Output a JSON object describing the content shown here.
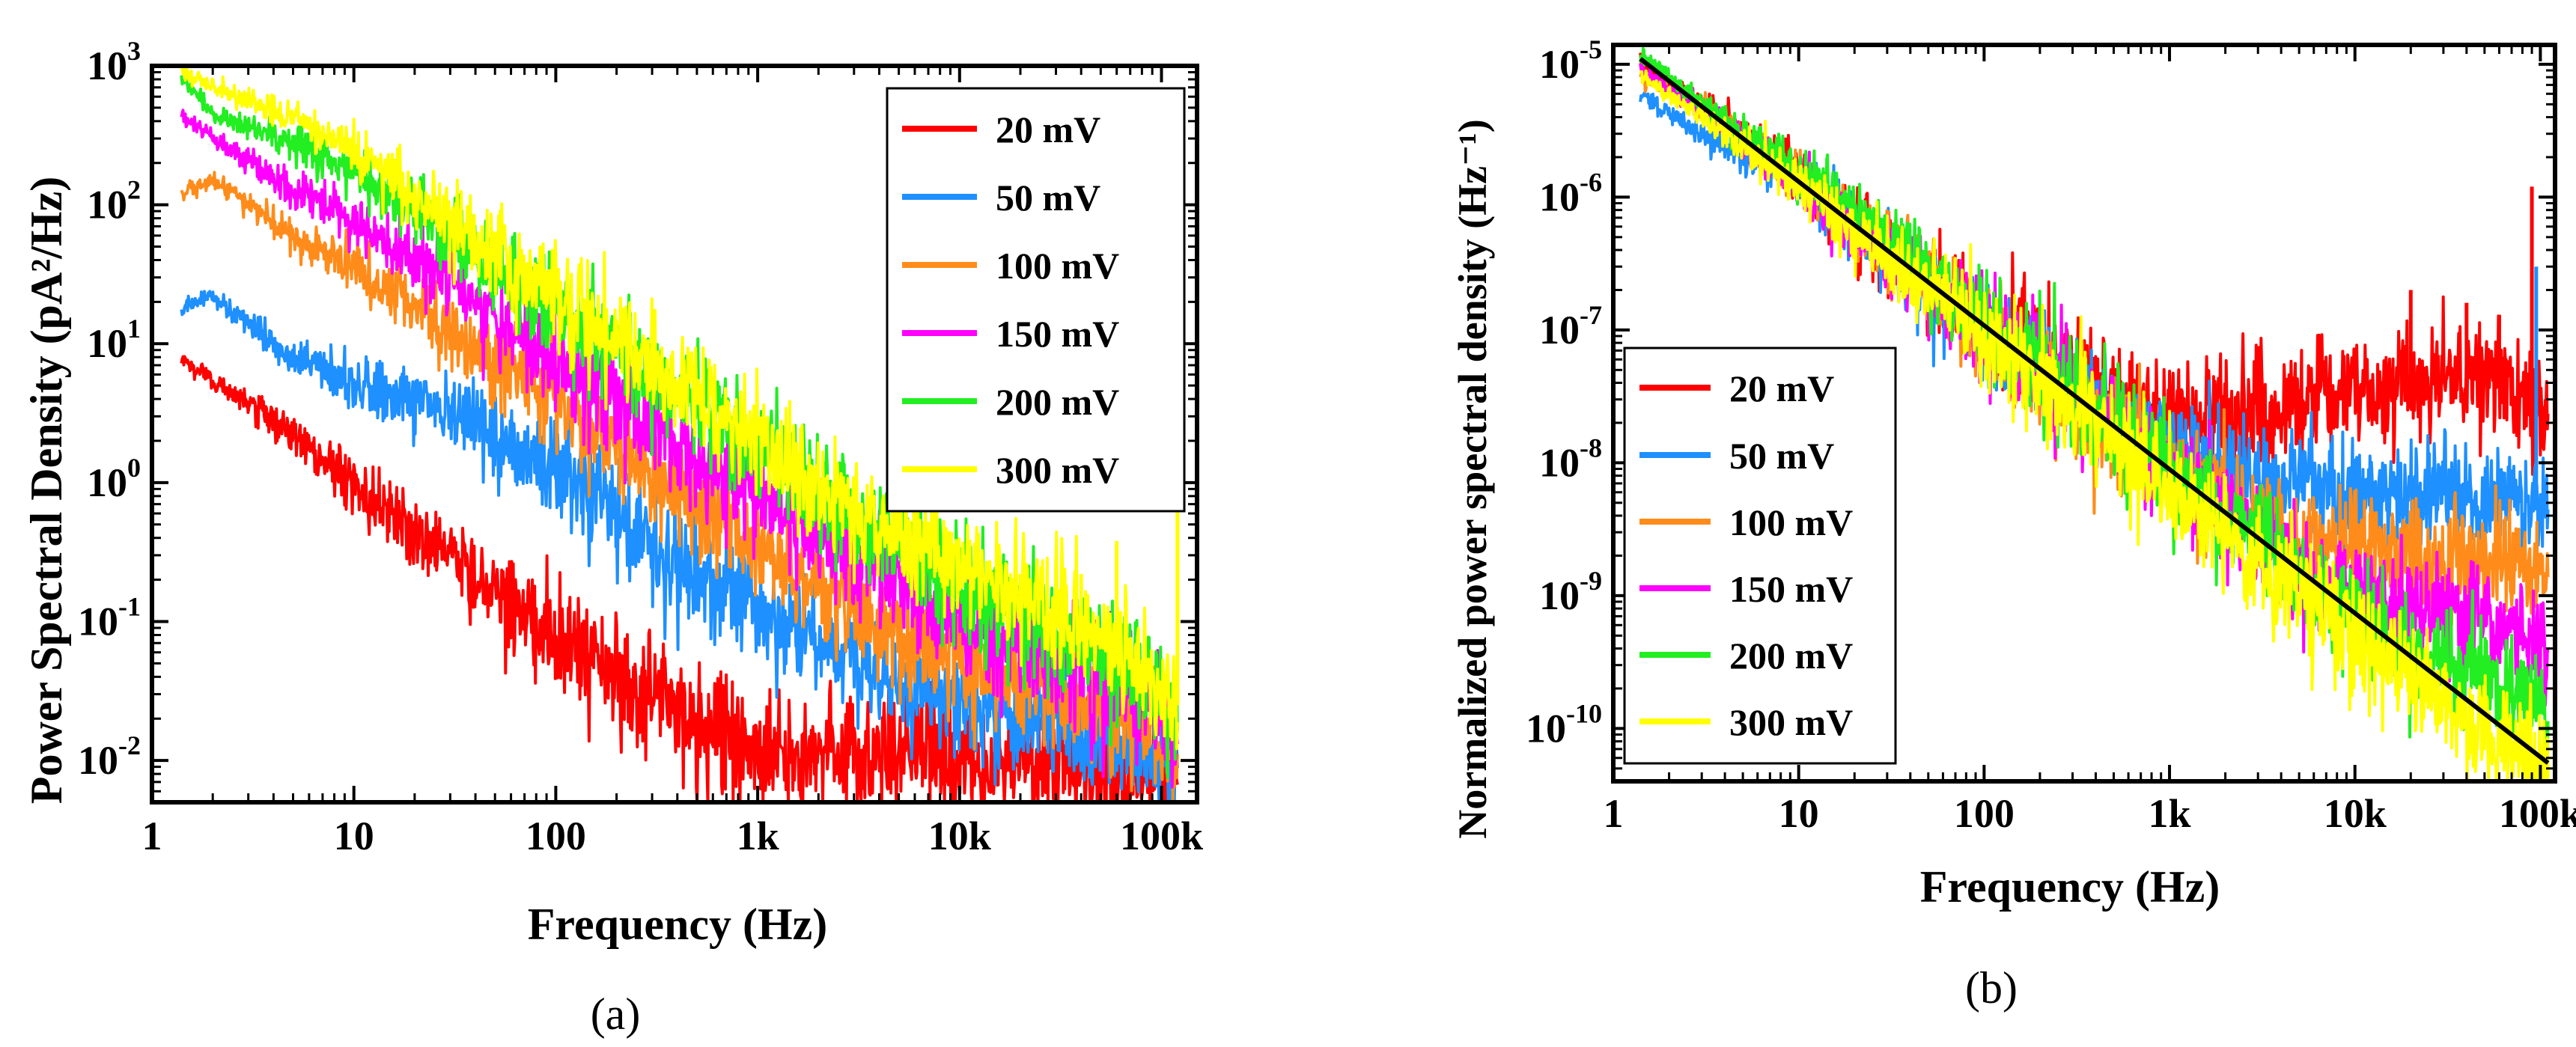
{
  "chart_data": [
    {
      "panel": "a",
      "type": "line",
      "panel_label": "(a)",
      "xlabel": "Frequency (Hz)",
      "ylabel": "Power Spectral Density (pA²/Hz)",
      "xscale": "log",
      "yscale": "log",
      "xlim": [
        1,
        150000
      ],
      "ylim": [
        0.005,
        1000
      ],
      "x_ticks": [
        {
          "value": 1,
          "label": "1"
        },
        {
          "value": 10,
          "label": "10"
        },
        {
          "value": 100,
          "label": "100"
        },
        {
          "value": 1000,
          "label": "1k"
        },
        {
          "value": 10000,
          "label": "10k"
        },
        {
          "value": 100000,
          "label": "100k"
        }
      ],
      "y_ticks": [
        {
          "value": 0.01,
          "base": "10",
          "exp": "-2"
        },
        {
          "value": 0.1,
          "base": "10",
          "exp": "-1"
        },
        {
          "value": 1,
          "base": "10",
          "exp": "0"
        },
        {
          "value": 10,
          "base": "10",
          "exp": "1"
        },
        {
          "value": 100,
          "base": "10",
          "exp": "2"
        },
        {
          "value": 1000,
          "base": "10",
          "exp": "3"
        }
      ],
      "legend_position": "top-right",
      "series": [
        {
          "name": "20 mV",
          "color": "#ff0000",
          "noise": 0.22,
          "points": [
            [
              1.4,
              7.5
            ],
            [
              2,
              5.5
            ],
            [
              5,
              2.2
            ],
            [
              10,
              1.0
            ],
            [
              20,
              0.45
            ],
            [
              40,
              0.22
            ],
            [
              80,
              0.1
            ],
            [
              150,
              0.05
            ],
            [
              300,
              0.028
            ],
            [
              600,
              0.016
            ],
            [
              1000,
              0.012
            ],
            [
              2000,
              0.011
            ],
            [
              5000,
              0.0105
            ],
            [
              10000,
              0.01
            ],
            [
              30000,
              0.0095
            ],
            [
              70000,
              0.008
            ],
            [
              100000,
              0.007
            ],
            [
              120000,
              0.0065
            ]
          ]
        },
        {
          "name": "50 mV",
          "color": "#1e90ff",
          "noise": 0.2,
          "points": [
            [
              1.4,
              18
            ],
            [
              2,
              22
            ],
            [
              5,
              8
            ],
            [
              10,
              5
            ],
            [
              20,
              3.8
            ],
            [
              40,
              2.5
            ],
            [
              80,
              1.5
            ],
            [
              150,
              0.8
            ],
            [
              300,
              0.35
            ],
            [
              600,
              0.18
            ],
            [
              1000,
              0.12
            ],
            [
              2000,
              0.07
            ],
            [
              5000,
              0.035
            ],
            [
              10000,
              0.025
            ],
            [
              30000,
              0.018
            ],
            [
              70000,
              0.013
            ],
            [
              100000,
              0.01
            ],
            [
              120000,
              0.009
            ]
          ]
        },
        {
          "name": "100 mV",
          "color": "#ff8c1a",
          "noise": 0.2,
          "points": [
            [
              1.4,
              120
            ],
            [
              2,
              150
            ],
            [
              5,
              60
            ],
            [
              10,
              35
            ],
            [
              20,
              20
            ],
            [
              40,
              10
            ],
            [
              80,
              5
            ],
            [
              150,
              2.5
            ],
            [
              300,
              1.2
            ],
            [
              600,
              0.6
            ],
            [
              1000,
              0.35
            ],
            [
              2000,
              0.18
            ],
            [
              5000,
              0.08
            ],
            [
              10000,
              0.05
            ],
            [
              30000,
              0.03
            ],
            [
              70000,
              0.02
            ],
            [
              100000,
              0.015
            ],
            [
              120000,
              0.012
            ]
          ]
        },
        {
          "name": "150 mV",
          "color": "#ff00ff",
          "noise": 0.2,
          "points": [
            [
              1.4,
              450
            ],
            [
              2,
              300
            ],
            [
              5,
              130
            ],
            [
              10,
              80
            ],
            [
              20,
              40
            ],
            [
              40,
              20
            ],
            [
              80,
              10
            ],
            [
              150,
              5
            ],
            [
              300,
              2.5
            ],
            [
              600,
              1.3
            ],
            [
              1000,
              0.8
            ],
            [
              2000,
              0.4
            ],
            [
              5000,
              0.2
            ],
            [
              10000,
              0.1
            ],
            [
              30000,
              0.05
            ],
            [
              70000,
              0.03
            ],
            [
              100000,
              0.02
            ],
            [
              120000,
              0.015
            ]
          ]
        },
        {
          "name": "200 mV",
          "color": "#22ee22",
          "noise": 0.2,
          "points": [
            [
              1.4,
              850
            ],
            [
              2,
              450
            ],
            [
              5,
              280
            ],
            [
              10,
              170
            ],
            [
              20,
              90
            ],
            [
              40,
              45
            ],
            [
              80,
              22
            ],
            [
              150,
              12
            ],
            [
              300,
              6
            ],
            [
              600,
              3
            ],
            [
              1000,
              1.8
            ],
            [
              2000,
              0.8
            ],
            [
              5000,
              0.35
            ],
            [
              10000,
              0.16
            ],
            [
              30000,
              0.08
            ],
            [
              70000,
              0.045
            ],
            [
              100000,
              0.03
            ],
            [
              120000,
              0.02
            ]
          ]
        },
        {
          "name": "300 mV",
          "color": "#ffff00",
          "noise": 0.2,
          "points": [
            [
              1.4,
              900
            ],
            [
              2,
              700
            ],
            [
              5,
              420
            ],
            [
              10,
              240
            ],
            [
              20,
              110
            ],
            [
              40,
              55
            ],
            [
              80,
              28
            ],
            [
              150,
              14
            ],
            [
              300,
              7
            ],
            [
              600,
              3.5
            ],
            [
              1000,
              2.0
            ],
            [
              2000,
              0.9
            ],
            [
              5000,
              0.45
            ],
            [
              10000,
              0.25
            ],
            [
              30000,
              0.12
            ],
            [
              70000,
              0.06
            ],
            [
              100000,
              0.035
            ],
            [
              120000,
              0.025
            ]
          ]
        }
      ],
      "spikes": [
        {
          "x": 20000,
          "top": 0.22,
          "color": "#ffff00"
        },
        {
          "x": 40000,
          "top": 0.22,
          "color": "#ffff00"
        },
        {
          "x": 60000,
          "top": 0.38,
          "color": "#ffff00"
        },
        {
          "x": 120000,
          "top": 0.7,
          "color": "#ffff00"
        }
      ]
    },
    {
      "panel": "b",
      "type": "line",
      "panel_label": "(b)",
      "xlabel": "Frequency (Hz)",
      "ylabel": "Normalized power spectral density (Hz⁻¹)",
      "xscale": "log",
      "yscale": "log",
      "xlim": [
        1,
        120000
      ],
      "ylim": [
        4e-11,
        1.4e-05
      ],
      "x_ticks": [
        {
          "value": 1,
          "label": "1"
        },
        {
          "value": 10,
          "label": "10"
        },
        {
          "value": 100,
          "label": "100"
        },
        {
          "value": 1000,
          "label": "1k"
        },
        {
          "value": 10000,
          "label": "10k"
        },
        {
          "value": 100000,
          "label": "100k"
        }
      ],
      "y_ticks": [
        {
          "value": 1e-10,
          "base": "10",
          "exp": "-10"
        },
        {
          "value": 1e-09,
          "base": "10",
          "exp": "-9"
        },
        {
          "value": 1e-08,
          "base": "10",
          "exp": "-8"
        },
        {
          "value": 1e-07,
          "base": "10",
          "exp": "-7"
        },
        {
          "value": 1e-06,
          "base": "10",
          "exp": "-6"
        },
        {
          "value": 1e-05,
          "base": "10",
          "exp": "-5"
        }
      ],
      "legend_position": "lower-left",
      "series": [
        {
          "name": "20 mV",
          "color": "#ff0000",
          "noise": 0.22,
          "points": [
            [
              1.4,
              1e-05
            ],
            [
              3,
              5e-06
            ],
            [
              10,
              1.5e-06
            ],
            [
              30,
              4e-07
            ],
            [
              100,
              1.2e-07
            ],
            [
              300,
              4.5e-08
            ],
            [
              1000,
              2.2e-08
            ],
            [
              3000,
              2.2e-08
            ],
            [
              10000,
              3.5e-08
            ],
            [
              30000,
              5e-08
            ],
            [
              60000,
              4e-08
            ],
            [
              100000,
              2.2e-08
            ],
            [
              110000,
              2e-08
            ]
          ]
        },
        {
          "name": "50 mV",
          "color": "#1e90ff",
          "noise": 0.2,
          "points": [
            [
              1.4,
              6e-06
            ],
            [
              3,
              3e-06
            ],
            [
              10,
              1.2e-06
            ],
            [
              30,
              4e-07
            ],
            [
              100,
              1.1e-07
            ],
            [
              300,
              3.5e-08
            ],
            [
              1000,
              1.3e-08
            ],
            [
              3000,
              7e-09
            ],
            [
              10000,
              6e-09
            ],
            [
              30000,
              6e-09
            ],
            [
              60000,
              6e-09
            ],
            [
              100000,
              5e-09
            ],
            [
              110000,
              4e-09
            ]
          ]
        },
        {
          "name": "100 mV",
          "color": "#ff8c1a",
          "noise": 0.2,
          "points": [
            [
              1.4,
              8e-06
            ],
            [
              3,
              5e-06
            ],
            [
              10,
              1.4e-06
            ],
            [
              30,
              4e-07
            ],
            [
              100,
              1e-07
            ],
            [
              300,
              3e-08
            ],
            [
              1000,
              9e-09
            ],
            [
              3000,
              3.5e-09
            ],
            [
              10000,
              2.2e-09
            ],
            [
              30000,
              1.8e-09
            ],
            [
              60000,
              1.7e-09
            ],
            [
              100000,
              1.5e-09
            ],
            [
              110000,
              1.3e-09
            ]
          ]
        },
        {
          "name": "150 mV",
          "color": "#ff00ff",
          "noise": 0.2,
          "points": [
            [
              1.4,
              9e-06
            ],
            [
              3,
              4.5e-06
            ],
            [
              10,
              1.3e-06
            ],
            [
              30,
              3.5e-07
            ],
            [
              100,
              1e-07
            ],
            [
              300,
              3e-08
            ],
            [
              1000,
              8e-09
            ],
            [
              3000,
              2.5e-09
            ],
            [
              10000,
              1e-09
            ],
            [
              30000,
              7e-10
            ],
            [
              60000,
              6e-10
            ],
            [
              100000,
              5e-10
            ],
            [
              110000,
              4e-10
            ]
          ]
        },
        {
          "name": "200 mV",
          "color": "#22ee22",
          "noise": 0.2,
          "points": [
            [
              1.4,
              1.2e-05
            ],
            [
              3,
              5e-06
            ],
            [
              10,
              1.6e-06
            ],
            [
              30,
              5e-07
            ],
            [
              100,
              1.2e-07
            ],
            [
              300,
              3e-08
            ],
            [
              1000,
              9e-09
            ],
            [
              3000,
              2.5e-09
            ],
            [
              10000,
              7e-10
            ],
            [
              30000,
              3e-10
            ],
            [
              60000,
              2e-10
            ],
            [
              100000,
              1.5e-10
            ],
            [
              110000,
              1.2e-10
            ]
          ]
        },
        {
          "name": "300 mV",
          "color": "#ffff00",
          "noise": 0.2,
          "points": [
            [
              1.4,
              8e-06
            ],
            [
              3,
              4e-06
            ],
            [
              10,
              1.2e-06
            ],
            [
              30,
              3.5e-07
            ],
            [
              100,
              9e-08
            ],
            [
              300,
              2.5e-08
            ],
            [
              1000,
              7e-09
            ],
            [
              3000,
              1.8e-09
            ],
            [
              10000,
              5e-10
            ],
            [
              30000,
              1.5e-10
            ],
            [
              60000,
              8e-11
            ],
            [
              100000,
              5e-11
            ],
            [
              110000,
              4e-11
            ]
          ]
        }
      ],
      "fit_line": {
        "color": "#000000",
        "points": [
          [
            1.4,
            1.1e-05
          ],
          [
            110000,
            5.5e-11
          ]
        ]
      },
      "spikes": [
        {
          "x": 20000,
          "top": 2e-07,
          "color": "#ff0000"
        },
        {
          "x": 40000,
          "top": 1.6e-07,
          "color": "#ff0000"
        },
        {
          "x": 60000,
          "top": 1.3e-07,
          "color": "#ff0000"
        },
        {
          "x": 90000,
          "top": 1.2e-06,
          "color": "#ff0000"
        },
        {
          "x": 95000,
          "top": 3e-07,
          "color": "#1e90ff"
        }
      ]
    }
  ]
}
